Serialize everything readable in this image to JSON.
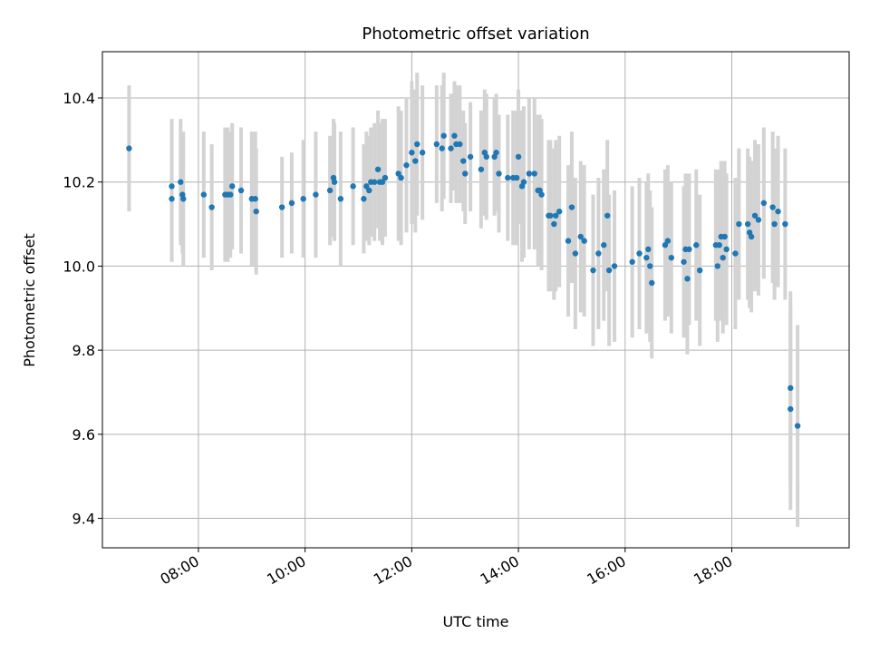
{
  "chart_data": {
    "type": "scatter",
    "title": "Photometric offset variation",
    "xlabel": "UTC time",
    "ylabel": "Photometric offset",
    "xlim": [
      "06:12",
      "20:12"
    ],
    "ylim": [
      9.33,
      10.51
    ],
    "grid": true,
    "colors": {
      "point": "#1f77b4",
      "errorbar": "#d3d3d3"
    },
    "xticks": [
      "08:00",
      "10:00",
      "12:00",
      "14:00",
      "16:00",
      "18:00"
    ],
    "yticks": [
      9.4,
      9.6,
      9.8,
      10.0,
      10.2,
      10.4
    ],
    "series": [
      {
        "points": [
          {
            "x": "06:42",
            "y": 10.28,
            "err": 0.15
          },
          {
            "x": "07:30",
            "y": 10.19,
            "err": 0.16
          },
          {
            "x": "07:30",
            "y": 10.16,
            "err": 0.15
          },
          {
            "x": "07:40",
            "y": 10.2,
            "err": 0.15
          },
          {
            "x": "07:42",
            "y": 10.17,
            "err": 0.14
          },
          {
            "x": "07:43",
            "y": 10.16,
            "err": 0.16
          },
          {
            "x": "08:06",
            "y": 10.17,
            "err": 0.15
          },
          {
            "x": "08:15",
            "y": 10.14,
            "err": 0.15
          },
          {
            "x": "08:30",
            "y": 10.17,
            "err": 0.16
          },
          {
            "x": "08:33",
            "y": 10.17,
            "err": 0.16
          },
          {
            "x": "08:36",
            "y": 10.17,
            "err": 0.15
          },
          {
            "x": "08:38",
            "y": 10.19,
            "err": 0.15
          },
          {
            "x": "08:48",
            "y": 10.18,
            "err": 0.15
          },
          {
            "x": "09:00",
            "y": 10.16,
            "err": 0.16
          },
          {
            "x": "09:04",
            "y": 10.16,
            "err": 0.16
          },
          {
            "x": "09:05",
            "y": 10.13,
            "err": 0.15
          },
          {
            "x": "09:34",
            "y": 10.14,
            "err": 0.12
          },
          {
            "x": "09:45",
            "y": 10.15,
            "err": 0.12
          },
          {
            "x": "09:58",
            "y": 10.16,
            "err": 0.14
          },
          {
            "x": "10:12",
            "y": 10.17,
            "err": 0.15
          },
          {
            "x": "10:28",
            "y": 10.18,
            "err": 0.13
          },
          {
            "x": "10:32",
            "y": 10.21,
            "err": 0.14
          },
          {
            "x": "10:33",
            "y": 10.2,
            "err": 0.14
          },
          {
            "x": "10:40",
            "y": 10.16,
            "err": 0.16
          },
          {
            "x": "10:54",
            "y": 10.19,
            "err": 0.14
          },
          {
            "x": "11:06",
            "y": 10.16,
            "err": 0.13
          },
          {
            "x": "11:09",
            "y": 10.19,
            "err": 0.13
          },
          {
            "x": "11:12",
            "y": 10.18,
            "err": 0.13
          },
          {
            "x": "11:14",
            "y": 10.2,
            "err": 0.13
          },
          {
            "x": "11:18",
            "y": 10.2,
            "err": 0.14
          },
          {
            "x": "11:22",
            "y": 10.23,
            "err": 0.14
          },
          {
            "x": "11:24",
            "y": 10.2,
            "err": 0.14
          },
          {
            "x": "11:27",
            "y": 10.2,
            "err": 0.15
          },
          {
            "x": "11:30",
            "y": 10.21,
            "err": 0.14
          },
          {
            "x": "11:45",
            "y": 10.22,
            "err": 0.16
          },
          {
            "x": "11:48",
            "y": 10.21,
            "err": 0.16
          },
          {
            "x": "11:54",
            "y": 10.24,
            "err": 0.16
          },
          {
            "x": "12:00",
            "y": 10.27,
            "err": 0.17
          },
          {
            "x": "12:04",
            "y": 10.25,
            "err": 0.17
          },
          {
            "x": "12:06",
            "y": 10.29,
            "err": 0.17
          },
          {
            "x": "12:12",
            "y": 10.27,
            "err": 0.16
          },
          {
            "x": "12:28",
            "y": 10.29,
            "err": 0.14
          },
          {
            "x": "12:34",
            "y": 10.28,
            "err": 0.15
          },
          {
            "x": "12:36",
            "y": 10.31,
            "err": 0.15
          },
          {
            "x": "12:44",
            "y": 10.28,
            "err": 0.13
          },
          {
            "x": "12:48",
            "y": 10.31,
            "err": 0.13
          },
          {
            "x": "12:50",
            "y": 10.29,
            "err": 0.14
          },
          {
            "x": "12:54",
            "y": 10.29,
            "err": 0.14
          },
          {
            "x": "12:58",
            "y": 10.25,
            "err": 0.12
          },
          {
            "x": "13:00",
            "y": 10.22,
            "err": 0.12
          },
          {
            "x": "13:06",
            "y": 10.26,
            "err": 0.13
          },
          {
            "x": "13:18",
            "y": 10.23,
            "err": 0.14
          },
          {
            "x": "13:22",
            "y": 10.27,
            "err": 0.15
          },
          {
            "x": "13:24",
            "y": 10.26,
            "err": 0.15
          },
          {
            "x": "13:33",
            "y": 10.26,
            "err": 0.14
          },
          {
            "x": "13:35",
            "y": 10.27,
            "err": 0.14
          },
          {
            "x": "13:38",
            "y": 10.22,
            "err": 0.14
          },
          {
            "x": "13:48",
            "y": 10.21,
            "err": 0.15
          },
          {
            "x": "13:54",
            "y": 10.21,
            "err": 0.16
          },
          {
            "x": "13:58",
            "y": 10.21,
            "err": 0.16
          },
          {
            "x": "14:00",
            "y": 10.26,
            "err": 0.16
          },
          {
            "x": "14:04",
            "y": 10.19,
            "err": 0.18
          },
          {
            "x": "14:06",
            "y": 10.2,
            "err": 0.18
          },
          {
            "x": "14:12",
            "y": 10.22,
            "err": 0.18
          },
          {
            "x": "14:18",
            "y": 10.22,
            "err": 0.18
          },
          {
            "x": "14:22",
            "y": 10.18,
            "err": 0.18
          },
          {
            "x": "14:24",
            "y": 10.18,
            "err": 0.18
          },
          {
            "x": "14:26",
            "y": 10.17,
            "err": 0.18
          },
          {
            "x": "14:34",
            "y": 10.12,
            "err": 0.18
          },
          {
            "x": "14:36",
            "y": 10.12,
            "err": 0.18
          },
          {
            "x": "14:40",
            "y": 10.1,
            "err": 0.18
          },
          {
            "x": "14:42",
            "y": 10.12,
            "err": 0.18
          },
          {
            "x": "14:46",
            "y": 10.13,
            "err": 0.18
          },
          {
            "x": "14:56",
            "y": 10.06,
            "err": 0.18
          },
          {
            "x": "15:00",
            "y": 10.14,
            "err": 0.18
          },
          {
            "x": "15:04",
            "y": 10.03,
            "err": 0.18
          },
          {
            "x": "15:10",
            "y": 10.07,
            "err": 0.18
          },
          {
            "x": "15:14",
            "y": 10.06,
            "err": 0.18
          },
          {
            "x": "15:24",
            "y": 9.99,
            "err": 0.18
          },
          {
            "x": "15:30",
            "y": 10.03,
            "err": 0.18
          },
          {
            "x": "15:36",
            "y": 10.05,
            "err": 0.18
          },
          {
            "x": "15:40",
            "y": 10.12,
            "err": 0.18
          },
          {
            "x": "15:42",
            "y": 9.99,
            "err": 0.18
          },
          {
            "x": "15:48",
            "y": 10.0,
            "err": 0.18
          },
          {
            "x": "16:08",
            "y": 10.01,
            "err": 0.18
          },
          {
            "x": "16:16",
            "y": 10.03,
            "err": 0.18
          },
          {
            "x": "16:24",
            "y": 10.02,
            "err": 0.18
          },
          {
            "x": "16:26",
            "y": 10.04,
            "err": 0.18
          },
          {
            "x": "16:28",
            "y": 10.0,
            "err": 0.18
          },
          {
            "x": "16:30",
            "y": 9.96,
            "err": 0.18
          },
          {
            "x": "16:45",
            "y": 10.05,
            "err": 0.18
          },
          {
            "x": "16:48",
            "y": 10.06,
            "err": 0.18
          },
          {
            "x": "16:52",
            "y": 10.02,
            "err": 0.18
          },
          {
            "x": "17:06",
            "y": 10.01,
            "err": 0.18
          },
          {
            "x": "17:08",
            "y": 10.04,
            "err": 0.18
          },
          {
            "x": "17:10",
            "y": 9.97,
            "err": 0.18
          },
          {
            "x": "17:12",
            "y": 10.04,
            "err": 0.18
          },
          {
            "x": "17:20",
            "y": 10.05,
            "err": 0.18
          },
          {
            "x": "17:24",
            "y": 9.99,
            "err": 0.18
          },
          {
            "x": "17:42",
            "y": 10.05,
            "err": 0.18
          },
          {
            "x": "17:44",
            "y": 10.0,
            "err": 0.18
          },
          {
            "x": "17:46",
            "y": 10.05,
            "err": 0.18
          },
          {
            "x": "17:48",
            "y": 10.07,
            "err": 0.18
          },
          {
            "x": "17:50",
            "y": 10.02,
            "err": 0.18
          },
          {
            "x": "17:52",
            "y": 10.07,
            "err": 0.18
          },
          {
            "x": "17:54",
            "y": 10.04,
            "err": 0.18
          },
          {
            "x": "18:04",
            "y": 10.03,
            "err": 0.18
          },
          {
            "x": "18:08",
            "y": 10.1,
            "err": 0.18
          },
          {
            "x": "18:18",
            "y": 10.1,
            "err": 0.18
          },
          {
            "x": "18:20",
            "y": 10.08,
            "err": 0.18
          },
          {
            "x": "18:22",
            "y": 10.07,
            "err": 0.18
          },
          {
            "x": "18:26",
            "y": 10.12,
            "err": 0.18
          },
          {
            "x": "18:30",
            "y": 10.11,
            "err": 0.18
          },
          {
            "x": "18:36",
            "y": 10.15,
            "err": 0.18
          },
          {
            "x": "18:46",
            "y": 10.14,
            "err": 0.18
          },
          {
            "x": "18:48",
            "y": 10.1,
            "err": 0.18
          },
          {
            "x": "18:52",
            "y": 10.13,
            "err": 0.18
          },
          {
            "x": "19:00",
            "y": 10.1,
            "err": 0.18
          },
          {
            "x": "19:06",
            "y": 9.71,
            "err": 0.23
          },
          {
            "x": "19:06",
            "y": 9.66,
            "err": 0.24
          },
          {
            "x": "19:14",
            "y": 9.62,
            "err": 0.24
          }
        ]
      }
    ]
  }
}
